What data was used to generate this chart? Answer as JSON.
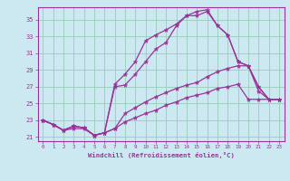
{
  "xlabel": "Windchill (Refroidissement éolien,°C)",
  "background_color": "#cce8f0",
  "grid_color": "#99ccbb",
  "line_color": "#993399",
  "xlim": [
    -0.5,
    23.5
  ],
  "ylim": [
    20.5,
    36.5
  ],
  "xticks": [
    0,
    1,
    2,
    3,
    4,
    5,
    6,
    7,
    8,
    9,
    10,
    11,
    12,
    13,
    14,
    15,
    16,
    17,
    18,
    19,
    20,
    21,
    22,
    23
  ],
  "yticks": [
    21,
    23,
    25,
    27,
    29,
    31,
    33,
    35
  ],
  "lines": [
    {
      "x": [
        0,
        1,
        2,
        3,
        4,
        5,
        6,
        7,
        8,
        9,
        10,
        11,
        12,
        13,
        14,
        15,
        16,
        17,
        18,
        19,
        20,
        21,
        22,
        23
      ],
      "y": [
        23,
        22.5,
        21.8,
        22.3,
        22.1,
        21.2,
        21.5,
        27.3,
        28.5,
        30.0,
        32.5,
        33.2,
        33.8,
        34.5,
        35.5,
        35.5,
        36.0,
        34.3,
        33.2,
        30.0,
        29.5,
        27.0,
        25.5,
        25.5
      ]
    },
    {
      "x": [
        0,
        1,
        2,
        3,
        4,
        5,
        6,
        7,
        8,
        9,
        10,
        11,
        12,
        13,
        14,
        15,
        16,
        17,
        18,
        19,
        20,
        21,
        22,
        23
      ],
      "y": [
        23,
        22.5,
        21.8,
        22.3,
        22.1,
        21.2,
        21.5,
        27.0,
        27.2,
        28.5,
        30.0,
        31.5,
        32.3,
        34.3,
        35.5,
        36.0,
        36.2,
        34.3,
        33.2,
        30.0,
        29.5,
        27.0,
        25.5,
        25.5
      ]
    },
    {
      "x": [
        0,
        1,
        2,
        3,
        4,
        5,
        6,
        7,
        8,
        9,
        10,
        11,
        12,
        13,
        14,
        15,
        16,
        17,
        18,
        19,
        20,
        21,
        22,
        23
      ],
      "y": [
        23,
        22.5,
        21.8,
        22.3,
        22.1,
        21.2,
        21.5,
        22.0,
        23.8,
        24.5,
        25.2,
        25.8,
        26.3,
        26.8,
        27.2,
        27.5,
        28.2,
        28.8,
        29.2,
        29.5,
        29.5,
        26.5,
        25.5,
        25.5
      ]
    },
    {
      "x": [
        0,
        1,
        2,
        3,
        4,
        5,
        6,
        7,
        8,
        9,
        10,
        11,
        12,
        13,
        14,
        15,
        16,
        17,
        18,
        19,
        20,
        21,
        22,
        23
      ],
      "y": [
        23,
        22.5,
        21.8,
        22.0,
        22.0,
        21.2,
        21.5,
        22.0,
        22.8,
        23.3,
        23.8,
        24.2,
        24.8,
        25.2,
        25.7,
        26.0,
        26.3,
        26.8,
        27.0,
        27.3,
        25.5,
        25.5,
        25.5,
        25.5
      ]
    }
  ]
}
